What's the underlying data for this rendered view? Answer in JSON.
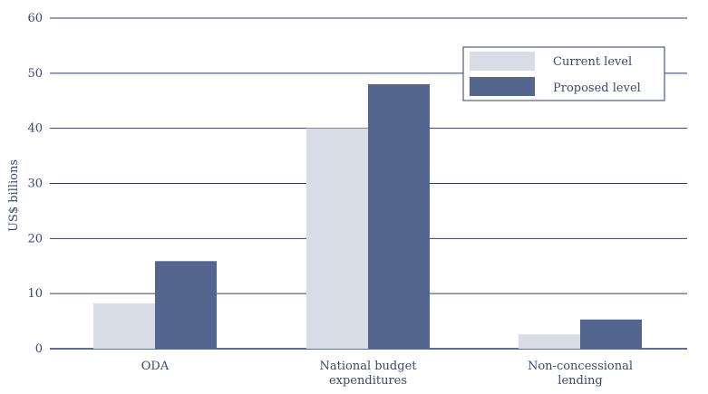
{
  "chart_data": {
    "type": "bar",
    "categories": [
      "ODA",
      "National budget expenditures",
      "Non-concessional lending"
    ],
    "category_lines": [
      [
        "ODA"
      ],
      [
        "National budget",
        "expenditures"
      ],
      [
        "Non-concessional",
        "lending"
      ]
    ],
    "series": [
      {
        "name": "Current level",
        "values": [
          8.2,
          40,
          2.6
        ],
        "color": "#d8dce6"
      },
      {
        "name": "Proposed level",
        "values": [
          15.9,
          48,
          5.3
        ],
        "color": "#54668f"
      }
    ],
    "xlabel": "",
    "ylabel": "US$ billions",
    "ylim": [
      0,
      60
    ],
    "yticks": [
      0,
      10,
      20,
      30,
      40,
      50,
      60
    ],
    "grid": true,
    "legend_position": "top-right",
    "colors": {
      "grid": "#2e3f66",
      "text": "#3a4a6a"
    }
  }
}
